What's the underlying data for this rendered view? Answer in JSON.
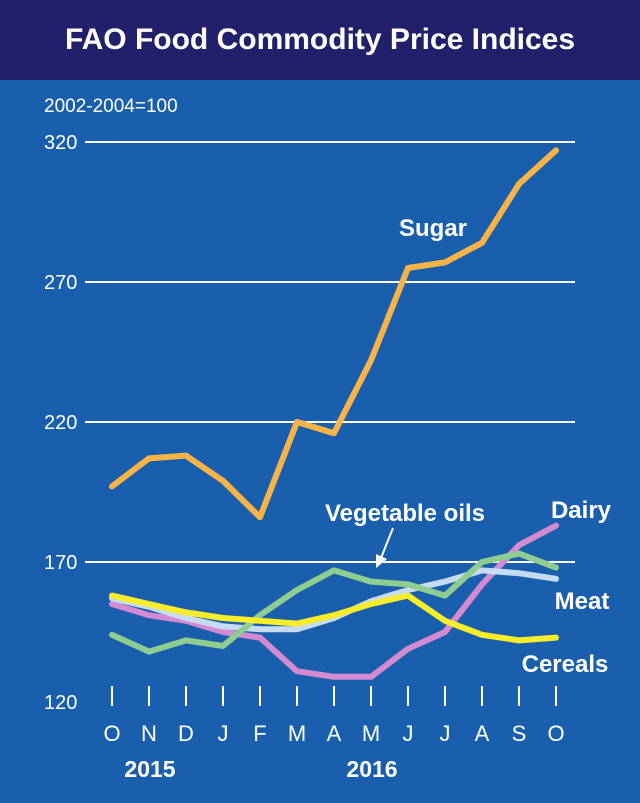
{
  "chart_data": {
    "type": "line",
    "title": "FAO Food Commodity Price Indices",
    "ylabel": "2002-2004=100",
    "xlabel": "",
    "ylim": [
      120,
      320
    ],
    "yticks": [
      120,
      170,
      220,
      270,
      320
    ],
    "grid": true,
    "categories": [
      "O",
      "N",
      "D",
      "J",
      "F",
      "M",
      "A",
      "M",
      "J",
      "J",
      "A",
      "S",
      "O"
    ],
    "year_labels": [
      {
        "label": "2015",
        "center_index": 1
      },
      {
        "label": "2016",
        "center_index": 7
      }
    ],
    "series": [
      {
        "name": "Sugar",
        "color": "#f9b347",
        "values": [
          197,
          207,
          208,
          199,
          186,
          220,
          216,
          242,
          275,
          277,
          284,
          305,
          317
        ]
      },
      {
        "name": "Vegetable oils",
        "color": "#8fcc8f",
        "values": [
          144,
          138,
          142,
          140,
          151,
          160,
          167,
          163,
          162,
          158,
          170,
          173,
          168
        ]
      },
      {
        "name": "Dairy",
        "color": "#d38ad0",
        "values": [
          155,
          151,
          149,
          145,
          143,
          131,
          129,
          129,
          139,
          145,
          162,
          176,
          183
        ]
      },
      {
        "name": "Meat",
        "color": "#c6dcf3",
        "values": [
          157,
          154,
          150,
          147,
          146,
          146,
          150,
          156,
          160,
          163,
          167,
          166,
          164
        ]
      },
      {
        "name": "Cereals",
        "color": "#f8ed2a",
        "values": [
          158,
          155,
          152,
          150,
          149,
          148,
          151,
          155,
          158,
          149,
          144,
          142,
          143
        ]
      }
    ],
    "annotations": [
      "Sugar",
      "Vegetable oils",
      "Dairy",
      "Meat",
      "Cereals"
    ]
  }
}
